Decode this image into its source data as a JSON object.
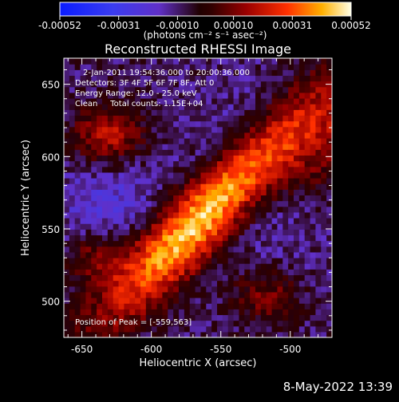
{
  "chart_data": {
    "type": "heatmap",
    "title": "Reconstructed RHESSI Image",
    "xlabel": "Heliocentric X (arcsec)",
    "ylabel": "Heliocentric Y (arcsec)",
    "xlim": [
      -663,
      -470
    ],
    "ylim": [
      475,
      668
    ],
    "x_ticks": [
      -650,
      -600,
      -550,
      -500
    ],
    "y_ticks": [
      500,
      550,
      600,
      650
    ],
    "colorbar": {
      "range": [
        -0.00052,
        0.00052
      ],
      "tick_values": [
        -0.00052,
        -0.00031,
        -0.0001,
        0.0001,
        0.00031,
        0.00052
      ],
      "tick_labels": [
        "-0.00052",
        "-0.00031",
        "-0.00010",
        "0.00010",
        "0.00031",
        "0.00052"
      ],
      "unit_label": "(photons cm⁻² s⁻¹ asec⁻²)"
    },
    "annotations": {
      "time_range": "2-Jan-2011 19:54:36.000 to 20:00:36.000",
      "detectors": "Detectors: 3F 4F 5F 6F 7F 8F, Att 0",
      "energy_range": "Energy Range: 12.0 - 25.0 keV",
      "method": "Clean     Total counts: 1.15E+04",
      "peak_position": "Position of Peak = [-559,563]"
    },
    "peak": [
      -559,
      563
    ],
    "grid": false
  },
  "footer": {
    "timestamp": "8-May-2022 13:39"
  }
}
